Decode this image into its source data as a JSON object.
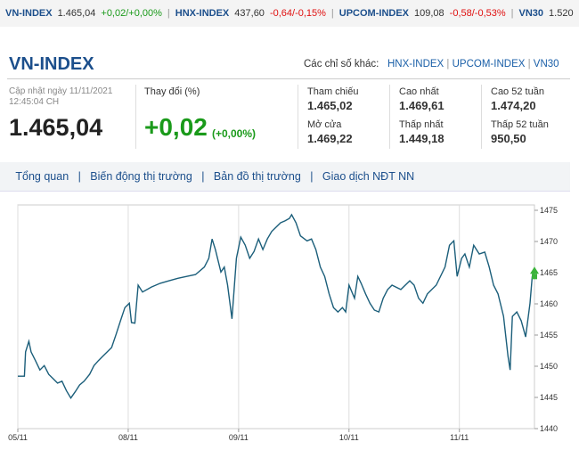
{
  "ticker": [
    {
      "name": "VN-INDEX",
      "value": "1.465,04",
      "change": "+0,02/+0,00%"
    },
    {
      "name": "HNX-INDEX",
      "value": "437,60",
      "change": "-0,64/-0,15%"
    },
    {
      "name": "UPCOM-INDEX",
      "value": "109,08",
      "change": "-0,58/-0,53%"
    },
    {
      "name": "VN30",
      "value": "1.520"
    }
  ],
  "header": {
    "title": "VN-INDEX",
    "others_label": "Các chỉ số khác:",
    "links": [
      "HNX-INDEX",
      "UPCOM-INDEX",
      "VN30"
    ]
  },
  "update": {
    "label": "Cập nhật ngày 11/11/2021",
    "time": "12:45:04 CH"
  },
  "price": "1.465,04",
  "change": {
    "label": "Thay đổi (%)",
    "value": "+0,02",
    "percent": "(+0,00%)"
  },
  "stats": [
    {
      "label": "Tham chiếu",
      "value": "1.465,02"
    },
    {
      "label": "Cao nhất",
      "value": "1.469,61"
    },
    {
      "label": "Cao 52 tuần",
      "value": "1.474,20"
    },
    {
      "label": "Mở cửa",
      "value": "1.469,22"
    },
    {
      "label": "Thấp nhất",
      "value": "1.449,18"
    },
    {
      "label": "Thấp 52 tuần",
      "value": "950,50"
    }
  ],
  "tabs": [
    "Tổng quan",
    "Biến động thị trường",
    "Bản đồ thị trường",
    "Giao dịch NĐT NN"
  ],
  "chart_data": {
    "type": "line",
    "color": "#1b5e7a",
    "x": [
      0,
      0.06,
      0.07,
      0.1,
      0.12,
      0.16,
      0.2,
      0.24,
      0.28,
      0.32,
      0.36,
      0.4,
      0.44,
      0.48,
      0.52,
      0.56,
      0.6,
      0.65,
      0.69,
      0.73,
      0.77,
      0.81,
      0.85,
      0.89,
      0.93,
      0.97,
      1.01,
      1.03,
      1.06,
      1.09,
      1.13,
      1.21,
      1.29,
      1.37,
      1.45,
      1.53,
      1.61,
      1.69,
      1.73,
      1.76,
      1.79,
      1.84,
      1.87,
      1.9,
      1.94,
      1.98,
      2.02,
      2.06,
      2.1,
      2.14,
      2.18,
      2.22,
      2.26,
      2.3,
      2.34,
      2.38,
      2.42,
      2.46,
      2.48,
      2.52,
      2.56,
      2.62,
      2.66,
      2.7,
      2.74,
      2.78,
      2.82,
      2.86,
      2.9,
      2.94,
      2.97,
      3.0,
      3.05,
      3.08,
      3.11,
      3.15,
      3.19,
      3.23,
      3.27,
      3.31,
      3.35,
      3.39,
      3.47,
      3.55,
      3.59,
      3.63,
      3.67,
      3.71,
      3.79,
      3.87,
      3.91,
      3.95,
      3.98,
      4.02,
      4.05,
      4.09,
      4.13,
      4.18,
      4.23,
      4.27,
      4.31,
      4.35,
      4.4,
      4.44,
      4.46,
      4.48,
      4.52,
      4.56,
      4.6,
      4.64,
      4.66,
      4.68
    ],
    "values": [
      1448.4,
      1448.4,
      1452.3,
      1454.0,
      1452.3,
      1450.9,
      1449.4,
      1450.1,
      1448.7,
      1448.0,
      1447.3,
      1447.6,
      1446.1,
      1444.9,
      1445.9,
      1447.0,
      1447.6,
      1448.7,
      1450.1,
      1450.9,
      1451.6,
      1452.3,
      1453.0,
      1455.1,
      1457.3,
      1459.4,
      1460.1,
      1457.0,
      1456.9,
      1463.0,
      1461.9,
      1462.7,
      1463.3,
      1463.7,
      1464.1,
      1464.4,
      1464.7,
      1465.9,
      1467.3,
      1470.4,
      1468.7,
      1465.1,
      1465.9,
      1463.0,
      1457.6,
      1467.3,
      1470.7,
      1469.4,
      1467.3,
      1468.4,
      1470.4,
      1468.7,
      1470.4,
      1471.6,
      1472.3,
      1473.0,
      1473.3,
      1473.7,
      1474.3,
      1473.0,
      1470.9,
      1470.1,
      1470.4,
      1468.7,
      1465.9,
      1464.4,
      1461.6,
      1459.4,
      1458.7,
      1459.4,
      1458.7,
      1463.0,
      1460.9,
      1464.4,
      1463.3,
      1461.6,
      1460.1,
      1459.0,
      1458.7,
      1460.9,
      1462.3,
      1463.0,
      1462.3,
      1463.7,
      1463.0,
      1460.9,
      1460.1,
      1461.6,
      1463.0,
      1465.9,
      1469.4,
      1470.1,
      1464.4,
      1467.3,
      1468.0,
      1465.9,
      1469.4,
      1468.0,
      1468.3,
      1465.9,
      1463.0,
      1461.6,
      1458.0,
      1451.6,
      1449.4,
      1458.0,
      1458.7,
      1457.3,
      1454.7,
      1460.1,
      1464.4,
      1465.1
    ],
    "xlim": [
      0,
      4.68
    ],
    "ylim": [
      1440,
      1475
    ],
    "yticks": [
      1440,
      1445,
      1450,
      1455,
      1460,
      1465,
      1470,
      1475
    ],
    "xticks": [
      {
        "value": 0,
        "label": "05/11"
      },
      {
        "value": 1,
        "label": "08/11"
      },
      {
        "value": 2,
        "label": "09/11"
      },
      {
        "value": 3,
        "label": "10/11"
      },
      {
        "value": 4,
        "label": "11/11"
      }
    ],
    "grid": true
  }
}
